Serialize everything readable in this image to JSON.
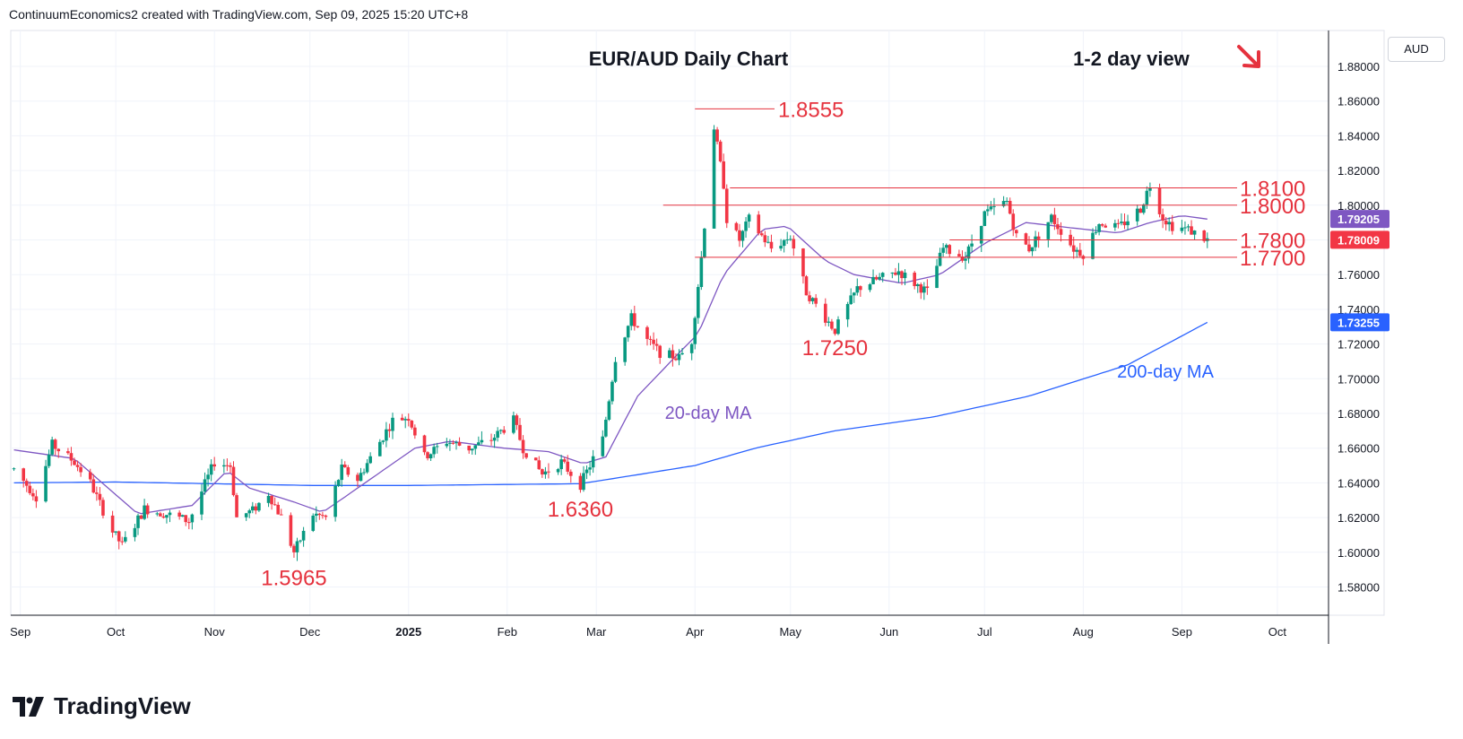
{
  "header": {
    "attribution": "ContinuumEconomics2 created with TradingView.com, Sep 09, 2025 15:20 UTC+8"
  },
  "currency_label": "AUD",
  "logo": {
    "text": "TradingView",
    "icon": "tradingview-logo-icon"
  },
  "colors": {
    "up": "#089981",
    "down": "#f23645",
    "ma20": "#7e57c2",
    "ma200": "#2962ff",
    "annotation": "#e5323e",
    "last_price": "#f23645",
    "ma20_box": "#7e57c2",
    "ma200_box": "#2962ff"
  },
  "chart_data": {
    "type": "candlestick",
    "title": "EUR/AUD Daily Chart",
    "subtitle": "1-2 day view",
    "trend_arrow": "down-right-arrow-icon",
    "x_ticks": [
      "Sep",
      "Oct",
      "Nov",
      "Dec",
      "2025",
      "Feb",
      "Mar",
      "Apr",
      "May",
      "Jun",
      "Jul",
      "Aug",
      "Sep",
      "Oct"
    ],
    "y_ticks": [
      "1.58000",
      "1.60000",
      "1.62000",
      "1.64000",
      "1.66000",
      "1.68000",
      "1.70000",
      "1.72000",
      "1.74000",
      "1.76000",
      "1.78000",
      "1.80000",
      "1.82000",
      "1.84000",
      "1.86000",
      "1.88000"
    ],
    "ylim": [
      1.567,
      1.892
    ],
    "grid": true,
    "levels": [
      {
        "label": "1.8555",
        "value": 1.8555
      },
      {
        "label": "1.8100",
        "value": 1.81
      },
      {
        "label": "1.8000",
        "value": 1.8
      },
      {
        "label": "1.7800",
        "value": 1.78
      },
      {
        "label": "1.7700",
        "value": 1.77
      }
    ],
    "swing_labels": [
      {
        "label": "1.5965",
        "value": 1.5965
      },
      {
        "label": "1.6360",
        "value": 1.636
      },
      {
        "label": "1.7250",
        "value": 1.725
      }
    ],
    "moving_averages": [
      {
        "name": "20-day MA",
        "last": "1.79205"
      },
      {
        "name": "200-day MA",
        "last": "1.73255"
      }
    ],
    "last_price": "1.78009",
    "anchors": [
      [
        "2024-08-30",
        1.648
      ],
      [
        "2024-09-06",
        1.632
      ],
      [
        "2024-09-11",
        1.662
      ],
      [
        "2024-09-18",
        1.652
      ],
      [
        "2024-09-23",
        1.64
      ],
      [
        "2024-09-30",
        1.612
      ],
      [
        "2024-10-03",
        1.604
      ],
      [
        "2024-10-10",
        1.625
      ],
      [
        "2024-10-17",
        1.622
      ],
      [
        "2024-10-24",
        1.618
      ],
      [
        "2024-11-01",
        1.652
      ],
      [
        "2024-11-06",
        1.65
      ],
      [
        "2024-11-08",
        1.62
      ],
      [
        "2024-11-13",
        1.624
      ],
      [
        "2024-11-18",
        1.634
      ],
      [
        "2024-11-22",
        1.62
      ],
      [
        "2024-11-26",
        1.6
      ],
      [
        "2024-12-02",
        1.622
      ],
      [
        "2024-12-06",
        1.62
      ],
      [
        "2024-12-11",
        1.648
      ],
      [
        "2024-12-16",
        1.642
      ],
      [
        "2024-12-27",
        1.676
      ],
      [
        "2025-01-01",
        1.678
      ],
      [
        "2025-01-06",
        1.655
      ],
      [
        "2025-01-13",
        1.664
      ],
      [
        "2025-01-20",
        1.66
      ],
      [
        "2025-01-27",
        1.665
      ],
      [
        "2025-02-03",
        1.676
      ],
      [
        "2025-02-06",
        1.66
      ],
      [
        "2025-02-12",
        1.645
      ],
      [
        "2025-02-18",
        1.652
      ],
      [
        "2025-02-24",
        1.639
      ],
      [
        "2025-03-03",
        1.665
      ],
      [
        "2025-03-07",
        1.712
      ],
      [
        "2025-03-12",
        1.735
      ],
      [
        "2025-03-17",
        1.722
      ],
      [
        "2025-03-21",
        1.715
      ],
      [
        "2025-03-27",
        1.712
      ],
      [
        "2025-03-31",
        1.722
      ],
      [
        "2025-04-03",
        1.77
      ],
      [
        "2025-04-07",
        1.845
      ],
      [
        "2025-04-10",
        1.812
      ],
      [
        "2025-04-11",
        1.792
      ],
      [
        "2025-04-15",
        1.78
      ],
      [
        "2025-04-18",
        1.792
      ],
      [
        "2025-04-25",
        1.775
      ],
      [
        "2025-05-01",
        1.782
      ],
      [
        "2025-05-06",
        1.75
      ],
      [
        "2025-05-12",
        1.735
      ],
      [
        "2025-05-15",
        1.728
      ],
      [
        "2025-05-22",
        1.752
      ],
      [
        "2025-05-28",
        1.757
      ],
      [
        "2025-06-04",
        1.762
      ],
      [
        "2025-06-09",
        1.755
      ],
      [
        "2025-06-13",
        1.75
      ],
      [
        "2025-06-18",
        1.775
      ],
      [
        "2025-06-25",
        1.77
      ],
      [
        "2025-07-01",
        1.795
      ],
      [
        "2025-07-08",
        1.802
      ],
      [
        "2025-07-11",
        1.782
      ],
      [
        "2025-07-15",
        1.775
      ],
      [
        "2025-07-22",
        1.793
      ],
      [
        "2025-07-29",
        1.775
      ],
      [
        "2025-08-01",
        1.772
      ],
      [
        "2025-08-06",
        1.79
      ],
      [
        "2025-08-12",
        1.787
      ],
      [
        "2025-08-19",
        1.798
      ],
      [
        "2025-08-22",
        1.812
      ],
      [
        "2025-08-26",
        1.793
      ],
      [
        "2025-08-29",
        1.788
      ],
      [
        "2025-09-03",
        1.786
      ],
      [
        "2025-09-09",
        1.78
      ]
    ],
    "ma20_anchors": [
      [
        "2024-08-30",
        1.659
      ],
      [
        "2024-09-18",
        1.654
      ],
      [
        "2024-10-08",
        1.622
      ],
      [
        "2024-10-25",
        1.627
      ],
      [
        "2024-11-05",
        1.647
      ],
      [
        "2024-11-12",
        1.637
      ],
      [
        "2024-11-26",
        1.629
      ],
      [
        "2024-12-05",
        1.623
      ],
      [
        "2024-12-16",
        1.637
      ],
      [
        "2025-01-03",
        1.66
      ],
      [
        "2025-01-14",
        1.664
      ],
      [
        "2025-01-31",
        1.66
      ],
      [
        "2025-02-14",
        1.658
      ],
      [
        "2025-02-25",
        1.651
      ],
      [
        "2025-03-04",
        1.655
      ],
      [
        "2025-03-14",
        1.69
      ],
      [
        "2025-03-26",
        1.713
      ],
      [
        "2025-04-02",
        1.726
      ],
      [
        "2025-04-10",
        1.76
      ],
      [
        "2025-04-22",
        1.786
      ],
      [
        "2025-04-30",
        1.788
      ],
      [
        "2025-05-12",
        1.768
      ],
      [
        "2025-05-21",
        1.76
      ],
      [
        "2025-06-05",
        1.755
      ],
      [
        "2025-06-17",
        1.76
      ],
      [
        "2025-07-01",
        1.778
      ],
      [
        "2025-07-14",
        1.79
      ],
      [
        "2025-07-28",
        1.787
      ],
      [
        "2025-08-12",
        1.784
      ],
      [
        "2025-08-22",
        1.79
      ],
      [
        "2025-09-01",
        1.794
      ],
      [
        "2025-09-09",
        1.792
      ]
    ],
    "ma200_anchors": [
      [
        "2024-08-30",
        1.64
      ],
      [
        "2024-10-01",
        1.6405
      ],
      [
        "2024-12-02",
        1.6385
      ],
      [
        "2025-01-01",
        1.6385
      ],
      [
        "2025-02-24",
        1.6395
      ],
      [
        "2025-03-15",
        1.645
      ],
      [
        "2025-04-01",
        1.65
      ],
      [
        "2025-04-20",
        1.66
      ],
      [
        "2025-05-15",
        1.67
      ],
      [
        "2025-06-15",
        1.678
      ],
      [
        "2025-07-15",
        1.69
      ],
      [
        "2025-08-15",
        1.708
      ],
      [
        "2025-09-09",
        1.7325
      ]
    ]
  }
}
